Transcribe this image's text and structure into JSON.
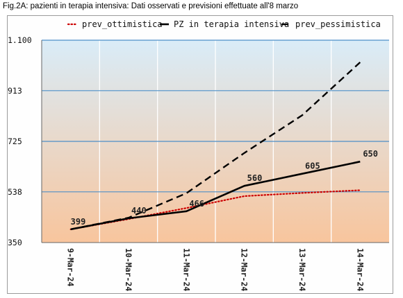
{
  "figure_title": "Fig.2A: pazienti in terapia intensiva: Dati osservati e previsioni effettuate all'8 marzo",
  "chart_data": {
    "type": "line",
    "categories": [
      "9-Mar-24",
      "10-Mar-24",
      "11-Mar-24",
      "12-Mar-24",
      "13-Mar-24",
      "14-Mar-24"
    ],
    "ylim": [
      350,
      1100
    ],
    "y_ticks": [
      350,
      538,
      725,
      913,
      1100
    ],
    "y_tick_labels": [
      "350",
      "538",
      "725",
      "913",
      "1.100"
    ],
    "grid": true,
    "legend_position": "top",
    "series": [
      {
        "name": "prev_ottimistica",
        "values": [
          399,
          437,
          478,
          522,
          534,
          544
        ],
        "color": "#cc0000",
        "style": "dotted",
        "labels": [
          "",
          "",
          "",
          "",
          "",
          ""
        ]
      },
      {
        "name": "PZ in terapia intensiva",
        "values": [
          399,
          440,
          466,
          560,
          605,
          650
        ],
        "color": "#000000",
        "style": "solid",
        "labels": [
          "399",
          "440",
          "466",
          "560",
          "605",
          "650"
        ]
      },
      {
        "name": "prev_pessimistica",
        "values": [
          399,
          442,
          533,
          682,
          822,
          1018
        ],
        "color": "#000000",
        "style": "dashed",
        "labels": [
          "",
          "",
          "",
          "",
          "",
          ""
        ]
      }
    ],
    "colors": {
      "plot_gradient_top": "#d9ecf8",
      "plot_gradient_bottom": "#f8c59d",
      "gridline": "#4d8fc7",
      "vertical_gridline": "#ffffff"
    }
  }
}
